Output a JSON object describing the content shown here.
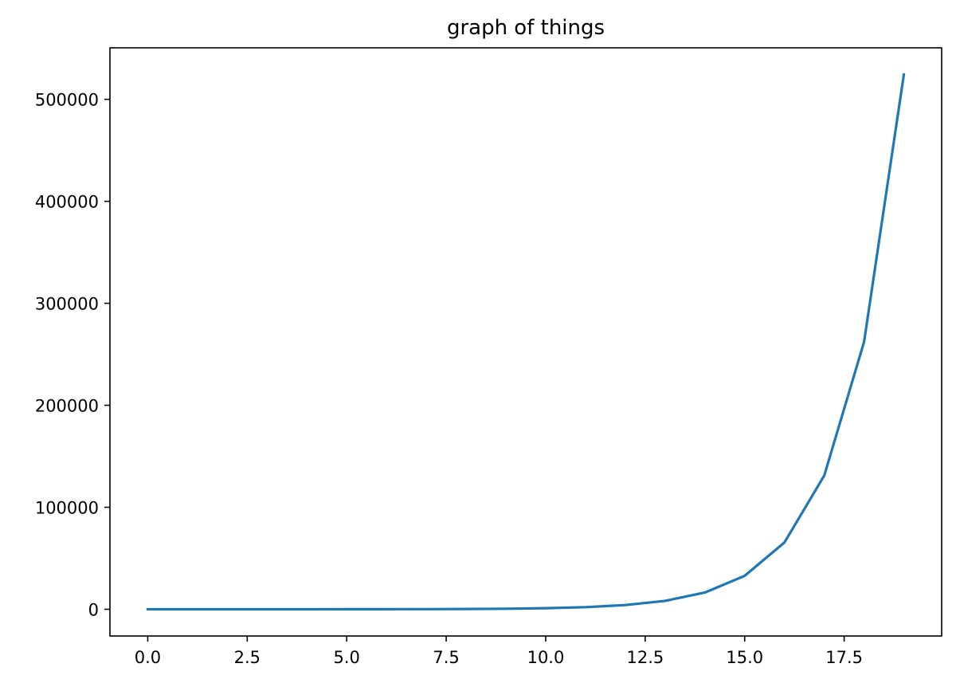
{
  "chart_data": {
    "type": "line",
    "title": "graph of things",
    "xlabel": "",
    "ylabel": "",
    "xlim": [
      -0.95,
      19.95
    ],
    "ylim": [
      -26214.4,
      550502.4
    ],
    "x_ticks": [
      0.0,
      2.5,
      5.0,
      7.5,
      10.0,
      12.5,
      15.0,
      17.5
    ],
    "x_tick_labels": [
      "0.0",
      "2.5",
      "5.0",
      "7.5",
      "10.0",
      "12.5",
      "15.0",
      "17.5"
    ],
    "y_ticks": [
      0,
      100000,
      200000,
      300000,
      400000,
      500000
    ],
    "y_tick_labels": [
      "0",
      "100000",
      "200000",
      "300000",
      "400000",
      "500000"
    ],
    "grid": false,
    "colors": {
      "line": "#1f77b4",
      "axes": "#000000",
      "background": "#ffffff"
    },
    "series": [
      {
        "x": [
          0,
          1,
          2,
          3,
          4,
          5,
          6,
          7,
          8,
          9,
          10,
          11,
          12,
          13,
          14,
          15,
          16,
          17,
          18,
          19
        ],
        "values": [
          1,
          2,
          4,
          8,
          16,
          32,
          64,
          128,
          256,
          512,
          1024,
          2048,
          4096,
          8192,
          16384,
          32768,
          65536,
          131072,
          262144,
          524288
        ]
      }
    ]
  }
}
